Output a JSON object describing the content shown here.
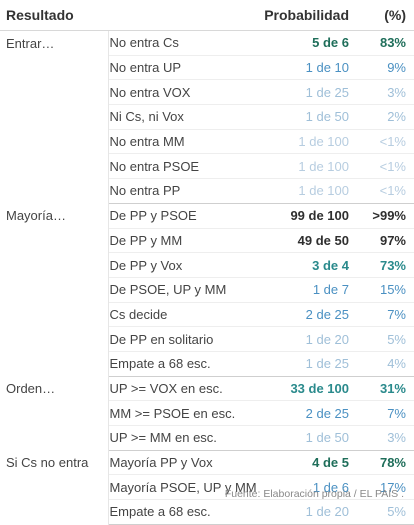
{
  "header": {
    "resultado": "Resultado",
    "probabilidad": "Probabilidad",
    "pct": "(%)"
  },
  "colors": {
    "dark": "#2f2f2f",
    "teal_dark": "#1f6e5a",
    "teal": "#2a8a8c",
    "blue": "#4a90c2",
    "light_blue": "#9fbfd8",
    "pale": "#b7cde0"
  },
  "groups": [
    {
      "label": "Entrar…",
      "rows": [
        {
          "scenario": "No entra Cs",
          "prob": "5 de 6",
          "pct": "83%",
          "tone": "teal_dark",
          "bold": true
        },
        {
          "scenario": "No entra UP",
          "prob": "1 de 10",
          "pct": "9%",
          "tone": "blue",
          "bold": false
        },
        {
          "scenario": "No entra VOX",
          "prob": "1 de 25",
          "pct": "3%",
          "tone": "light_blue",
          "bold": false
        },
        {
          "scenario": "Ni Cs, ni Vox",
          "prob": "1 de 50",
          "pct": "2%",
          "tone": "light_blue",
          "bold": false
        },
        {
          "scenario": "No entra MM",
          "prob": "1 de 100",
          "pct": "<1%",
          "tone": "pale",
          "bold": false
        },
        {
          "scenario": "No entra PSOE",
          "prob": "1 de 100",
          "pct": "<1%",
          "tone": "pale",
          "bold": false
        },
        {
          "scenario": "No entra PP",
          "prob": "1 de 100",
          "pct": "<1%",
          "tone": "pale",
          "bold": false
        }
      ]
    },
    {
      "label": "Mayoría…",
      "rows": [
        {
          "scenario": "De PP y PSOE",
          "prob": "99 de 100",
          "pct": ">99%",
          "tone": "dark",
          "bold": true
        },
        {
          "scenario": "De PP y MM",
          "prob": "49 de 50",
          "pct": "97%",
          "tone": "dark",
          "bold": true
        },
        {
          "scenario": "De PP y Vox",
          "prob": "3 de 4",
          "pct": "73%",
          "tone": "teal",
          "bold": true
        },
        {
          "scenario": "De PSOE, UP y MM",
          "prob": "1 de 7",
          "pct": "15%",
          "tone": "blue",
          "bold": false
        },
        {
          "scenario": "Cs decide",
          "prob": "2 de 25",
          "pct": "7%",
          "tone": "blue",
          "bold": false
        },
        {
          "scenario": "De PP en solitario",
          "prob": "1 de 20",
          "pct": "5%",
          "tone": "light_blue",
          "bold": false
        },
        {
          "scenario": "Empate a 68 esc.",
          "prob": "1 de 25",
          "pct": "4%",
          "tone": "light_blue",
          "bold": false
        }
      ]
    },
    {
      "label": "Orden…",
      "rows": [
        {
          "scenario": "UP >= VOX en esc.",
          "prob": "33 de 100",
          "pct": "31%",
          "tone": "teal",
          "bold": true
        },
        {
          "scenario": "MM >= PSOE en esc.",
          "prob": "2 de 25",
          "pct": "7%",
          "tone": "blue",
          "bold": false
        },
        {
          "scenario": "UP >= MM en esc.",
          "prob": "1 de 50",
          "pct": "3%",
          "tone": "light_blue",
          "bold": false
        }
      ]
    },
    {
      "label": "Si Cs no entra",
      "rows": [
        {
          "scenario": "Mayoría PP y Vox",
          "prob": "4 de 5",
          "pct": "78%",
          "tone": "teal_dark",
          "bold": true
        },
        {
          "scenario": "Mayoría PSOE, UP y MM",
          "prob": "1 de 6",
          "pct": "17%",
          "tone": "blue",
          "bold": false
        },
        {
          "scenario": "Empate a 68 esc.",
          "prob": "1 de 20",
          "pct": "5%",
          "tone": "light_blue",
          "bold": false
        }
      ]
    }
  ],
  "footer": "Fuente: Elaboración propia / EL PAÍS ."
}
